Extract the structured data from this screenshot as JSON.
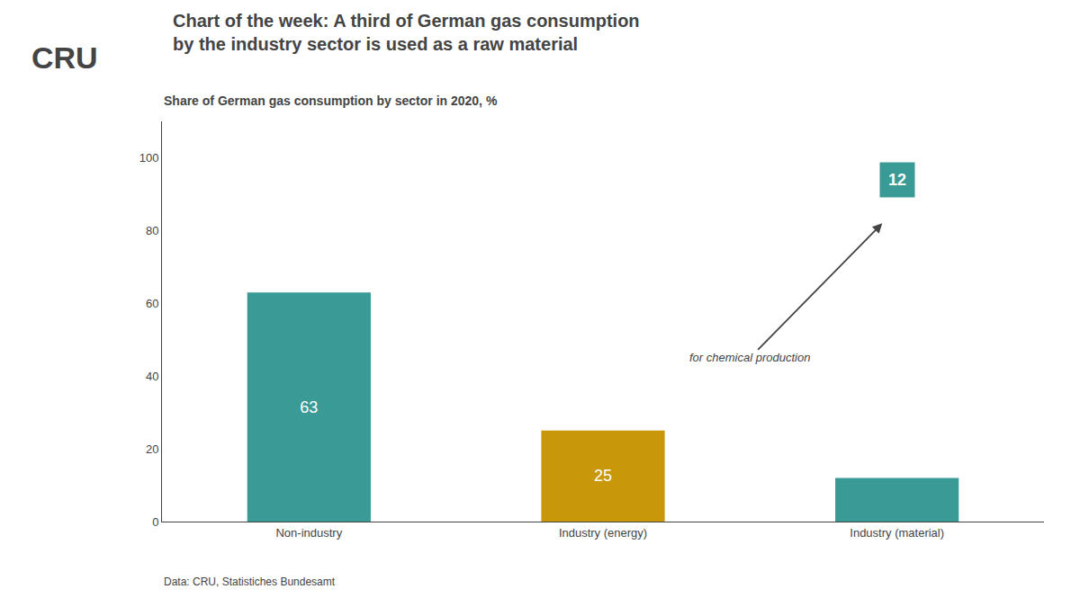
{
  "chart_data": {
    "type": "bar",
    "title": "Chart of the week: A third of German gas consumption by the industry sector is used as a raw material",
    "subtitle": "Share of German gas consumption by sector in 2020, %",
    "logo": "CRU",
    "annotations": [
      "for chemical production"
    ],
    "footnote": "Data: CRU, Statistiches Bundesamt",
    "categories": [
      "Non-industry",
      "Industry (energy)",
      "Industry (material)"
    ],
    "values": [
      63,
      25,
      12
    ],
    "colors": [
      "#3a9a96",
      "#c8980a",
      "#3a9a96"
    ],
    "ylim": [
      0,
      110
    ],
    "yticks": [
      0,
      20,
      40,
      60,
      80,
      100
    ],
    "grid": false,
    "data_labels": true
  }
}
